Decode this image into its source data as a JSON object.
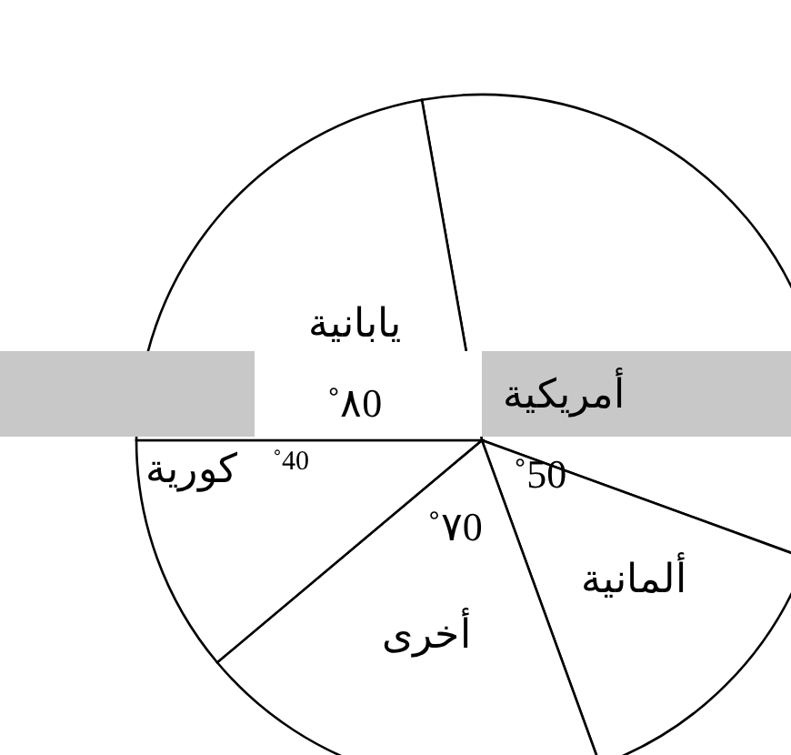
{
  "chart_data": {
    "type": "pie",
    "categories": [
      "أمريكية",
      "ألمانية",
      "أخرى",
      "كورية",
      "يابانية"
    ],
    "values": [
      120,
      50,
      70,
      40,
      80
    ],
    "colors": [
      "#ffffff",
      "#ffffff",
      "#ffffff",
      "#ffffff",
      "#ffffff"
    ],
    "value_labels": [
      null,
      "50˚",
      "٧0˚",
      "40˚",
      "٨0˚"
    ],
    "legend": false
  }
}
